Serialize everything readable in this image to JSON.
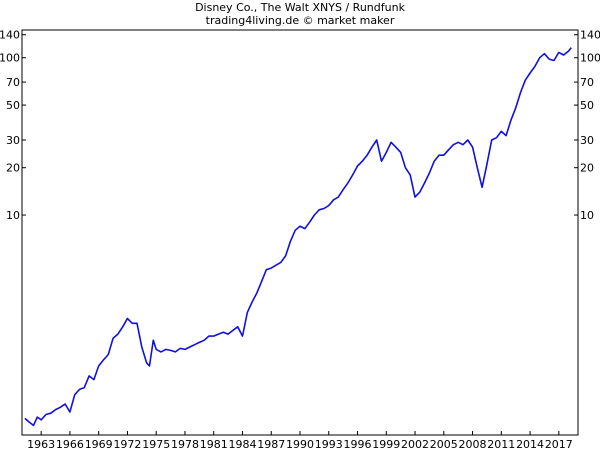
{
  "chart_data": {
    "type": "line",
    "title": "Disney Co., The Walt XNYS / Rundfunk",
    "subtitle": "trading4living.de © market maker",
    "y_scale": "log",
    "ylim": [
      0.4,
      150
    ],
    "xlim": [
      1961,
      2019
    ],
    "y_ticks": [
      10,
      20,
      30,
      50,
      70,
      100,
      140
    ],
    "x_ticks": [
      1963,
      1966,
      1969,
      1972,
      1975,
      1978,
      1981,
      1984,
      1987,
      1990,
      1993,
      1996,
      1999,
      2002,
      2005,
      2008,
      2011,
      2014,
      2017
    ],
    "line_color": "#1010e0",
    "series": [
      {
        "x": [
          1961.3,
          1961.8,
          1962.2,
          1962.6,
          1963.0,
          1963.5,
          1964.0,
          1964.5,
          1965.0,
          1965.5,
          1966.0,
          1966.5,
          1967.0,
          1967.5,
          1968.0,
          1968.5,
          1969.0,
          1969.5,
          1970.0,
          1970.5,
          1971.0,
          1971.5,
          1972.0,
          1972.5,
          1973.0,
          1973.5,
          1974.0,
          1974.3,
          1974.7,
          1975.0,
          1975.5,
          1976.0,
          1976.5,
          1977.0,
          1977.5,
          1978.0,
          1978.5,
          1979.0,
          1979.5,
          1980.0,
          1980.5,
          1981.0,
          1981.5,
          1982.0,
          1982.5,
          1983.0,
          1983.5,
          1984.0,
          1984.5,
          1985.0,
          1985.5,
          1986.0,
          1986.5,
          1987.0,
          1987.5,
          1988.0,
          1988.5,
          1989.0,
          1989.5,
          1990.0,
          1990.5,
          1991.0,
          1991.5,
          1992.0,
          1992.5,
          1993.0,
          1993.5,
          1994.0,
          1994.5,
          1995.0,
          1995.5,
          1996.0,
          1996.5,
          1997.0,
          1997.5,
          1998.0,
          1998.5,
          1999.0,
          1999.5,
          2000.0,
          2000.5,
          2001.0,
          2001.5,
          2002.0,
          2002.5,
          2003.0,
          2003.5,
          2004.0,
          2004.5,
          2005.0,
          2005.5,
          2006.0,
          2006.5,
          2007.0,
          2007.5,
          2008.0,
          2008.5,
          2009.0,
          2009.5,
          2010.0,
          2010.5,
          2011.0,
          2011.5,
          2012.0,
          2012.5,
          2013.0,
          2013.5,
          2014.0,
          2014.5,
          2015.0,
          2015.5,
          2016.0,
          2016.5,
          2017.0,
          2017.5,
          2018.0,
          2018.3
        ],
        "values": [
          0.51,
          0.48,
          0.46,
          0.52,
          0.5,
          0.54,
          0.55,
          0.58,
          0.6,
          0.63,
          0.56,
          0.72,
          0.78,
          0.8,
          0.95,
          0.9,
          1.1,
          1.2,
          1.3,
          1.65,
          1.75,
          1.95,
          2.2,
          2.05,
          2.05,
          1.45,
          1.15,
          1.1,
          1.6,
          1.4,
          1.35,
          1.4,
          1.38,
          1.35,
          1.42,
          1.4,
          1.45,
          1.5,
          1.55,
          1.6,
          1.7,
          1.7,
          1.75,
          1.8,
          1.75,
          1.85,
          1.95,
          1.7,
          2.4,
          2.8,
          3.2,
          3.8,
          4.5,
          4.6,
          4.8,
          5.0,
          5.5,
          6.8,
          8.0,
          8.5,
          8.2,
          9.0,
          10.0,
          10.8,
          11.0,
          11.5,
          12.5,
          13.0,
          14.5,
          16.0,
          18.0,
          20.5,
          22.0,
          24.0,
          27.0,
          30.0,
          22.0,
          25.0,
          29.0,
          27.0,
          25.0,
          20.0,
          18.0,
          13.0,
          14.0,
          16.0,
          18.5,
          22.0,
          24.0,
          24.0,
          26.0,
          28.0,
          29.0,
          28.0,
          30.0,
          27.0,
          20.0,
          15.0,
          21.0,
          30.0,
          31.0,
          34.0,
          32.0,
          40.0,
          48.0,
          60.0,
          72.0,
          80.0,
          88.0,
          100.0,
          106.0,
          98.0,
          96.0,
          108.0,
          104.0,
          110.0,
          116.0
        ]
      }
    ]
  }
}
